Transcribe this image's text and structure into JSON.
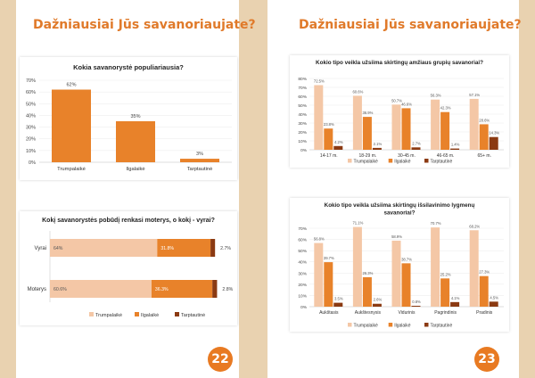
{
  "colors": {
    "c1": "#f4c7a6",
    "c2": "#e8822a",
    "c3": "#8b3a12",
    "accent": "#e07a2a"
  },
  "pages": [
    {
      "title": "Dažniausiai Jūs savanoriaujate?",
      "number": "22"
    },
    {
      "title": "Dažniausiai Jūs savanoriaujate?",
      "number": "23"
    }
  ],
  "chart_data": [
    {
      "type": "bar",
      "title": "Kokia savanorystė populiariausia?",
      "categories": [
        "Trumpalaikė",
        "Ilgalaikė",
        "Tarptautinė"
      ],
      "values": [
        62,
        35,
        3
      ],
      "value_labels": [
        "62%",
        "35%",
        "3%"
      ],
      "yticks": [
        "0%",
        "10%",
        "20%",
        "30%",
        "40%",
        "50%",
        "60%",
        "70%"
      ],
      "ylim": [
        0,
        70
      ]
    },
    {
      "type": "bar",
      "orientation": "horizontal-stacked",
      "title": "Kokį savanorystės pobūdį renkasi moterys, o kokį - vyrai?",
      "categories": [
        "Vyrai",
        "Moterys"
      ],
      "series": [
        {
          "name": "Trumpalaikė",
          "values": [
            64,
            60.6
          ],
          "labels": [
            "64%",
            "60.6%"
          ]
        },
        {
          "name": "Ilgalaikė",
          "values": [
            31.8,
            36.3
          ],
          "labels": [
            "31.8%",
            "36.3%"
          ]
        },
        {
          "name": "Tarptautinė",
          "values": [
            2.7,
            2.8
          ],
          "labels": [
            "2.7%",
            "2.8%"
          ]
        }
      ],
      "xlim": [
        0,
        100
      ]
    },
    {
      "type": "bar",
      "title": "Kokio tipo veikla užsiima skirtingų amžiaus grupių savanoriai?",
      "categories": [
        "14-17 m.",
        "18-29 m.",
        "30-45 m.",
        "46-65 m.",
        "65+ m."
      ],
      "series": [
        {
          "name": "Trumpalaikė",
          "values": [
            72.5,
            60.6,
            50.7,
            56.3,
            57.1
          ],
          "labels": [
            "72.5%",
            "60.6%",
            "50.7%",
            "56.3%",
            "57.1%"
          ]
        },
        {
          "name": "Ilgalaikė",
          "values": [
            23.8,
            36.9,
            46.6,
            42.3,
            28.6
          ],
          "labels": [
            "23.8%",
            "36.9%",
            "46.6%",
            "42.3%",
            "28.6%"
          ]
        },
        {
          "name": "Tarptautinė",
          "values": [
            4.2,
            2.1,
            2.7,
            1.4,
            14.3
          ],
          "labels": [
            "4.2%",
            "2.1%",
            "2.7%",
            "1.4%",
            "14.3%"
          ]
        }
      ],
      "yticks": [
        "0%",
        "10%",
        "20%",
        "30%",
        "40%",
        "50%",
        "60%",
        "70%",
        "80%"
      ],
      "ylim": [
        0,
        80
      ]
    },
    {
      "type": "bar",
      "title": "Kokio tipo veikla užsiima skirtingų išsilavinimo lygmenų savanoriai?",
      "categories": [
        "Aukštasis",
        "Aukštesnysis",
        "Vidurinis",
        "Pagrindinis",
        "Pradinis"
      ],
      "series": [
        {
          "name": "Trumpalaikė",
          "values": [
            56.8,
            71.1,
            58.9,
            70.7,
            68.2
          ],
          "labels": [
            "56.8%",
            "71.1%",
            "58.9%",
            "70.7%",
            "68.2%"
          ]
        },
        {
          "name": "Ilgalaikė",
          "values": [
            39.7,
            26.3,
            38.7,
            25.2,
            27.3
          ],
          "labels": [
            "39.7%",
            "26.3%",
            "38.7%",
            "25.2%",
            "27.3%"
          ]
        },
        {
          "name": "Tarptautinė",
          "values": [
            3.5,
            2.6,
            0.8,
            4.1,
            4.5
          ],
          "labels": [
            "3.5%",
            "2.6%",
            "0.8%",
            "4.1%",
            "4.5%"
          ]
        }
      ],
      "yticks": [
        "0%",
        "10%",
        "20%",
        "30%",
        "40%",
        "50%",
        "60%",
        "70%"
      ],
      "ylim": [
        0,
        70
      ]
    }
  ]
}
